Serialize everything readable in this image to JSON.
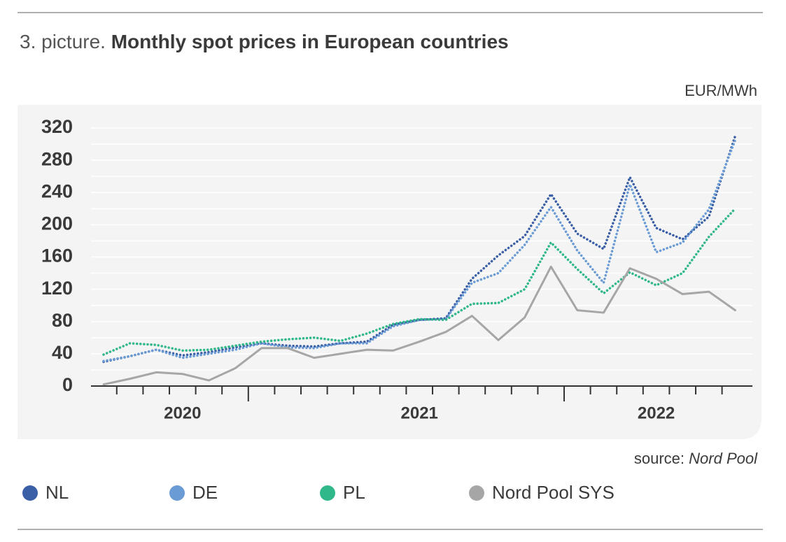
{
  "chart_data": {
    "type": "line",
    "title_label": "3. picture.",
    "title": "Monthly spot prices in European countries",
    "y_label": "EUR/MWh",
    "source_label": "source:",
    "source": "Nord Pool",
    "categories": [
      null,
      null,
      null,
      "2020",
      null,
      null,
      null,
      null,
      null,
      null,
      null,
      null,
      "2021",
      null,
      null,
      null,
      null,
      null,
      null,
      null,
      null,
      "2022",
      null,
      null,
      null
    ],
    "ylim": [
      0,
      320
    ],
    "yticks": [
      0,
      40,
      80,
      120,
      160,
      200,
      240,
      280,
      320
    ],
    "grid": true,
    "series": [
      {
        "name": "NL",
        "color": "#3a5fa6",
        "values": [
          30,
          37,
          45,
          38,
          42,
          48,
          53,
          50,
          49,
          53,
          55,
          76,
          82,
          84,
          133,
          162,
          186,
          238,
          189,
          170,
          259,
          196,
          182,
          210,
          310
        ]
      },
      {
        "name": "DE",
        "color": "#6a9bd4",
        "values": [
          31,
          37,
          45,
          35,
          40,
          45,
          53,
          48,
          47,
          53,
          53,
          74,
          82,
          83,
          128,
          140,
          175,
          222,
          168,
          128,
          250,
          166,
          178,
          219,
          305
        ]
      },
      {
        "name": "PL",
        "color": "#30b88a",
        "values": [
          39,
          53,
          51,
          44,
          45,
          50,
          55,
          58,
          60,
          56,
          65,
          77,
          83,
          82,
          102,
          103,
          120,
          178,
          145,
          115,
          141,
          125,
          140,
          185,
          220
        ]
      },
      {
        "name": "Nord Pool SYS",
        "color": "#a6a6a6",
        "values": [
          2,
          9,
          17,
          15,
          7,
          22,
          47,
          47,
          35,
          40,
          45,
          44,
          55,
          67,
          87,
          57,
          85,
          148,
          94,
          91,
          146,
          133,
          114,
          117,
          94
        ]
      }
    ]
  }
}
